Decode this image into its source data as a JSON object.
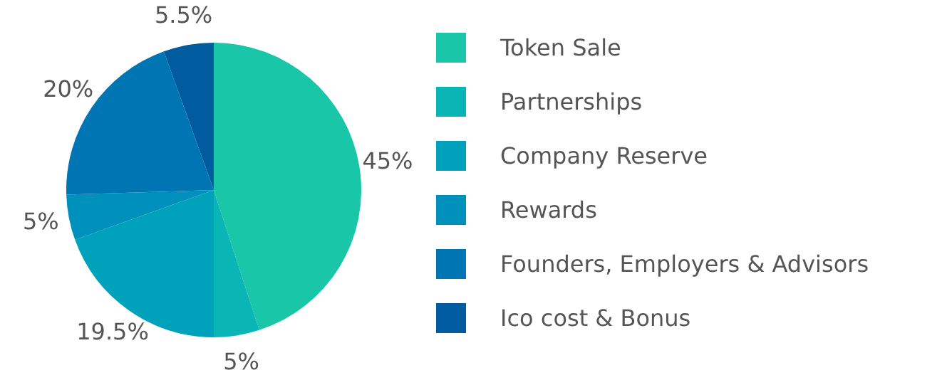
{
  "chart_data": {
    "type": "pie",
    "categories": [
      "Token Sale",
      "Partnerships",
      "Company Reserve",
      "Rewards",
      "Founders, Employers & Advisors",
      "Ico cost & Bonus"
    ],
    "values": [
      45,
      5,
      19.5,
      5,
      20,
      5.5
    ],
    "value_labels": [
      "45%",
      "5%",
      "19.5%",
      "5%",
      "20%",
      "5.5%"
    ],
    "colors": [
      "#19c6a7",
      "#0ab5b5",
      "#00a2bb",
      "#0090bc",
      "#0075b3",
      "#005c9e"
    ],
    "legend": "right"
  }
}
